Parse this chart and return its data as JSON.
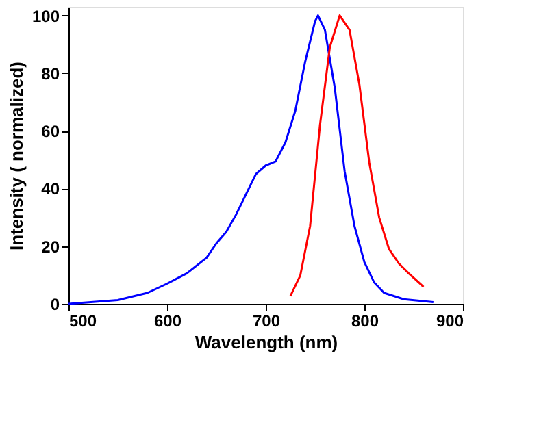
{
  "chart_data": {
    "type": "line",
    "xlabel": "Wavelength (nm)",
    "ylabel": "Intensity ( normalized)",
    "xlim": [
      500,
      900
    ],
    "xticks": [
      500,
      600,
      700,
      800,
      900
    ],
    "ylim": [
      0,
      103
    ],
    "yticks": [
      0,
      20,
      40,
      60,
      80,
      100
    ],
    "grid": false,
    "line_style": "solid",
    "marker": "none",
    "series": [
      {
        "color": "#0000ff",
        "x": [
          500,
          550,
          580,
          600,
          620,
          640,
          650,
          660,
          670,
          680,
          690,
          700,
          710,
          720,
          730,
          740,
          750,
          753,
          760,
          770,
          780,
          790,
          800,
          810,
          820,
          840,
          870
        ],
        "values": [
          0,
          1.3,
          3.8,
          7,
          10.6,
          16,
          21,
          25,
          31,
          38,
          45,
          48,
          49.4,
          56,
          67,
          84,
          98,
          100,
          95,
          75,
          46,
          27,
          14.5,
          7.4,
          3.8,
          1.6,
          0.6
        ]
      },
      {
        "color": "#ff0000",
        "x": [
          725,
          735,
          745,
          755,
          765,
          775,
          785,
          795,
          805,
          815,
          825,
          835,
          845,
          860
        ],
        "values": [
          2.7,
          9.8,
          27,
          62,
          89,
          100,
          95,
          76,
          49,
          30,
          19,
          14,
          10.6,
          5.9
        ]
      }
    ]
  }
}
